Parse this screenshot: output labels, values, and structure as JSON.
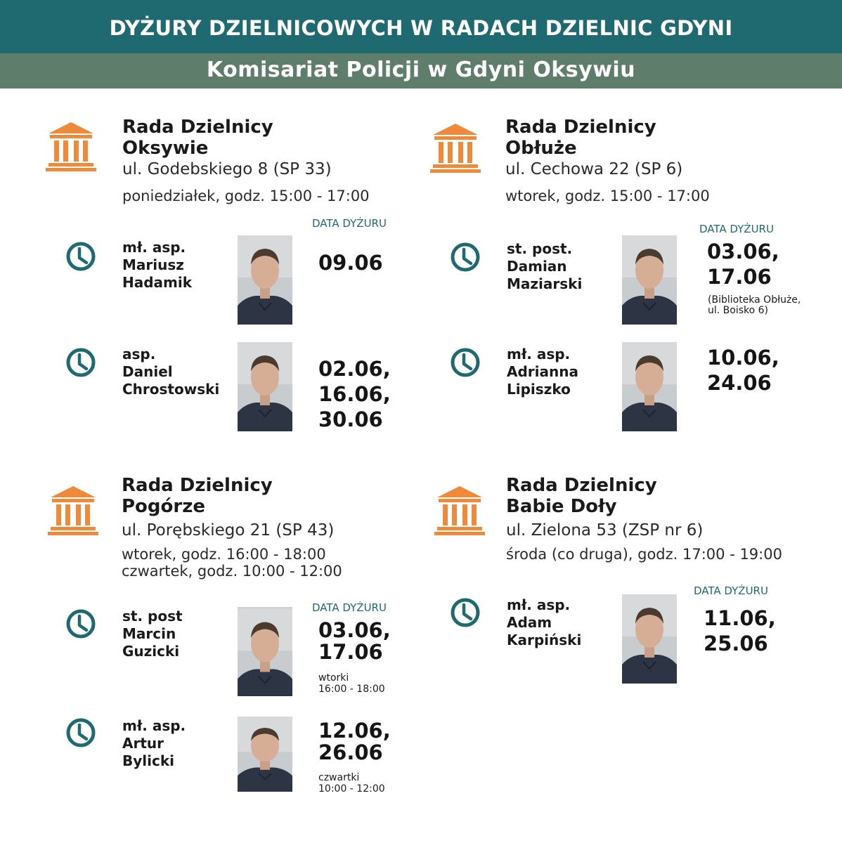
{
  "header": {
    "title": "DYŻURY DZIELNICOWYCH W RADACH DZIELNIC GDYNI",
    "subtitle": "Komisariat Policji w Gdyni Oksywiu"
  },
  "colors": {
    "header_bg": "#1e6a70",
    "subheader_bg": "#5e7d6b",
    "icon_orange": "#ee8a3a",
    "clock_teal": "#1e6a70"
  },
  "icons": {
    "building": "building-columns-icon",
    "clock": "clock-icon",
    "photo": "officer-photo"
  },
  "sections": [
    {
      "title_line1": "Rada Dzielnicy",
      "title_line2": "Oksywie",
      "address": "ul. Godebskiego 8  (SP 33)",
      "hours": [
        "poniedziałek, godz. 15:00 - 17:00"
      ],
      "date_label": "DATA DYŻURU",
      "officers": [
        {
          "rank": "mł. asp.",
          "first": "Mariusz",
          "last": "Hadamik",
          "dates": [
            "09.06"
          ],
          "note": []
        },
        {
          "rank": "asp.",
          "first": "Daniel",
          "last": "Chrostowski",
          "dates": [
            "02.06,",
            "16.06,",
            "30.06"
          ],
          "note": []
        }
      ]
    },
    {
      "title_line1": "Rada Dzielnicy",
      "title_line2": "Obłuże",
      "address": "ul. Cechowa 22 (SP 6)",
      "hours": [
        "wtorek, godz. 15:00 - 17:00"
      ],
      "date_label": "DATA DYŻURU",
      "officers": [
        {
          "rank": "st. post.",
          "first": "Damian",
          "last": "Maziarski",
          "dates": [
            "03.06,",
            "17.06"
          ],
          "note": [
            "(Biblioteka Obłuże,",
            "ul. Boisko 6)"
          ]
        },
        {
          "rank": "mł. asp.",
          "first": "Adrianna",
          "last": "Lipiszko",
          "dates": [
            "10.06,",
            "24.06"
          ],
          "note": []
        }
      ]
    },
    {
      "title_line1": "Rada Dzielnicy",
      "title_line2": "Pogórze",
      "address": "ul. Porębskiego 21 (SP 43)",
      "hours": [
        "wtorek, godz. 16:00 - 18:00",
        "czwartek, godz. 10:00 - 12:00"
      ],
      "date_label": "DATA DYŻURU",
      "officers": [
        {
          "rank": "st. post",
          "first": "Marcin",
          "last": "Guzicki",
          "dates": [
            "03.06,",
            "17.06"
          ],
          "note": [
            "wtorki",
            "16:00 - 18:00"
          ]
        },
        {
          "rank": "mł. asp.",
          "first": "Artur",
          "last": "Bylicki",
          "dates": [
            "12.06,",
            "26.06"
          ],
          "note": [
            "czwartki",
            "10:00 - 12:00"
          ]
        }
      ]
    },
    {
      "title_line1": "Rada Dzielnicy",
      "title_line2": "Babie Doły",
      "address": "ul. Zielona 53 (ZSP nr 6)",
      "hours": [
        "środa (co druga), godz. 17:00 - 19:00"
      ],
      "date_label": "DATA DYŻURU",
      "officers": [
        {
          "rank": "mł. asp.",
          "first": "Adam",
          "last": "Karpiński",
          "dates": [
            "11.06,",
            "25.06"
          ],
          "note": []
        }
      ]
    }
  ]
}
